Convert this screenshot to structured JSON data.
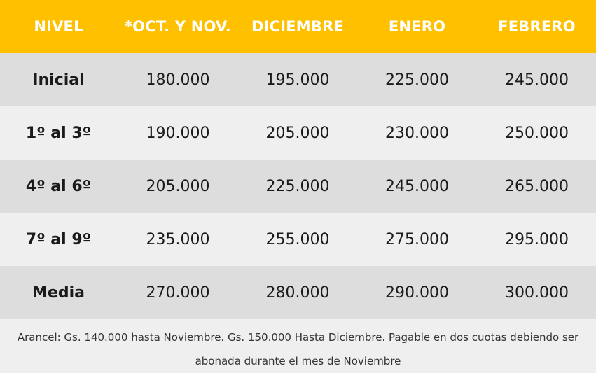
{
  "colors": {
    "header_bg": "#ffc000",
    "header_text": "#ffffff",
    "row_shade": "#dddddd",
    "row_light": "#efefef"
  },
  "headers": [
    "NIVEL",
    "*OCT. Y NOV.",
    "DICIEMBRE",
    "ENERO",
    "FEBRERO"
  ],
  "rows": [
    {
      "nivel": "Inicial",
      "values": [
        "180.000",
        "195.000",
        "225.000",
        "245.000"
      ]
    },
    {
      "nivel": "1º al 3º",
      "values": [
        "190.000",
        "205.000",
        "230.000",
        "250.000"
      ]
    },
    {
      "nivel": "4º al 6º",
      "values": [
        "205.000",
        "225.000",
        "245.000",
        "265.000"
      ]
    },
    {
      "nivel": "7º al 9º",
      "values": [
        "235.000",
        "255.000",
        "275.000",
        "295.000"
      ]
    },
    {
      "nivel": "Media",
      "values": [
        "270.000",
        "280.000",
        "290.000",
        "300.000"
      ]
    }
  ],
  "note": {
    "line1": "Arancel: Gs. 140.000 hasta Noviembre. Gs. 150.000 Hasta Diciembre. Pagable en dos cuotas debiendo ser",
    "line2": "abonada durante el mes de Noviembre"
  }
}
